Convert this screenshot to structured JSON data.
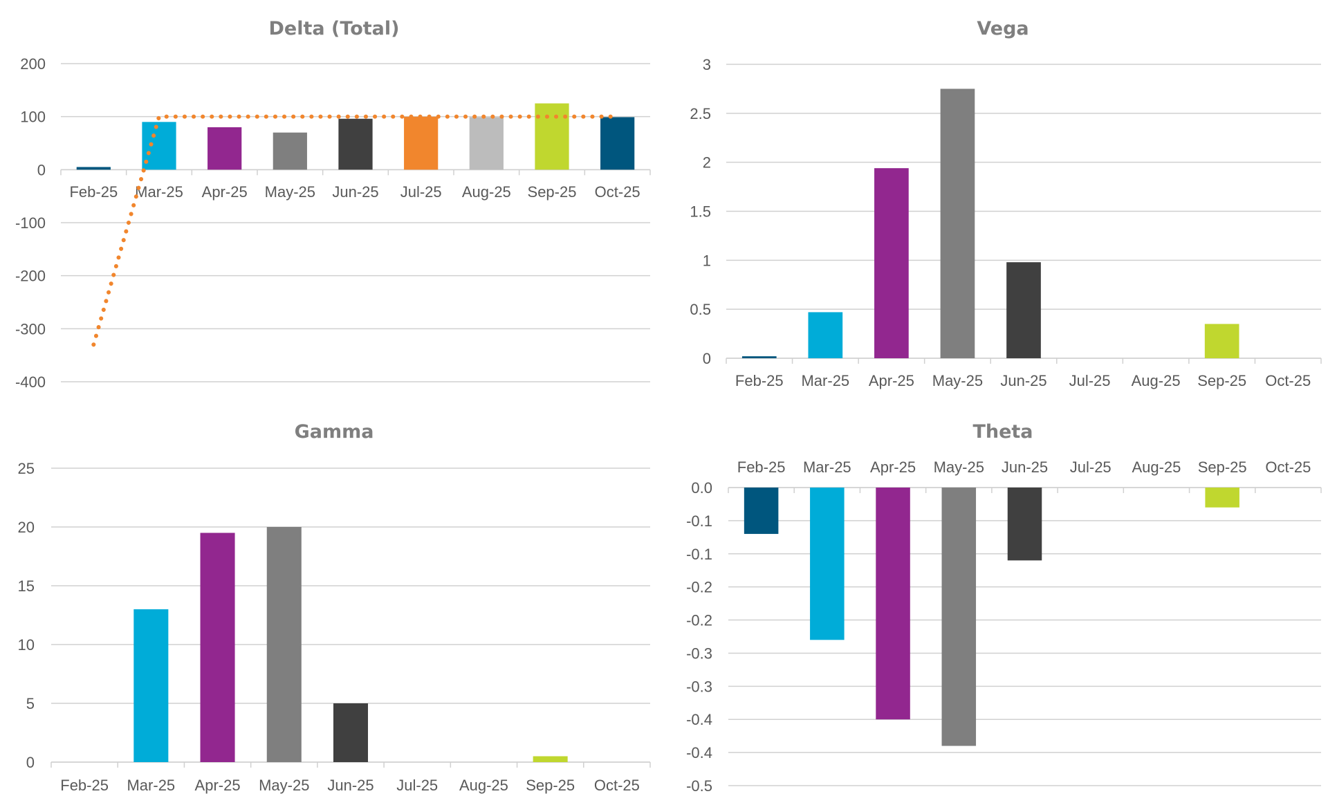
{
  "chart_data": [
    {
      "type": "bar",
      "title": "Delta (Total)",
      "categories": [
        "Feb-25",
        "Mar-25",
        "Apr-25",
        "May-25",
        "Jun-25",
        "Jul-25",
        "Aug-25",
        "Sep-25",
        "Oct-25"
      ],
      "values": [
        5,
        90,
        80,
        70,
        96,
        100,
        99,
        125,
        99
      ],
      "colors": [
        "#00567e",
        "#00acd8",
        "#92278f",
        "#7f7f7f",
        "#404040",
        "#f1862d",
        "#bcbcbc",
        "#c0d72f",
        "#00567e"
      ],
      "overlay_line": {
        "type": "line",
        "style": "dotted",
        "color": "#f1862d",
        "values": [
          -330,
          100,
          100,
          100,
          100,
          100,
          100,
          100,
          100
        ]
      },
      "ylim": [
        -400,
        200
      ],
      "yticks": [
        200,
        100,
        0,
        -100,
        -200,
        -300,
        -400
      ],
      "ytick_labels": [
        "200",
        "100",
        "0",
        "-100",
        "-200",
        "-300",
        "-400"
      ],
      "xlabel": "",
      "ylabel": "",
      "grid": true,
      "legend": "none"
    },
    {
      "type": "bar",
      "title": "Vega",
      "categories": [
        "Feb-25",
        "Mar-25",
        "Apr-25",
        "May-25",
        "Jun-25",
        "Jul-25",
        "Aug-25",
        "Sep-25",
        "Oct-25"
      ],
      "values": [
        0.02,
        0.47,
        1.94,
        2.75,
        0.98,
        0,
        0,
        0.35,
        0
      ],
      "colors": [
        "#00567e",
        "#00acd8",
        "#92278f",
        "#7f7f7f",
        "#404040",
        "#f1862d",
        "#bcbcbc",
        "#c0d72f",
        "#00567e"
      ],
      "ylim": [
        0,
        3
      ],
      "yticks": [
        3,
        2.5,
        2,
        1.5,
        1,
        0.5,
        0
      ],
      "ytick_labels": [
        "3",
        "2.5",
        "2",
        "1.5",
        "1",
        "0.5",
        "0"
      ],
      "xlabel": "",
      "ylabel": "",
      "grid": true,
      "legend": "none"
    },
    {
      "type": "bar",
      "title": "Gamma",
      "categories": [
        "Feb-25",
        "Mar-25",
        "Apr-25",
        "May-25",
        "Jun-25",
        "Jul-25",
        "Aug-25",
        "Sep-25",
        "Oct-25"
      ],
      "values": [
        0,
        13,
        19.5,
        20,
        5,
        0,
        0,
        0.5,
        0
      ],
      "colors": [
        "#00567e",
        "#00acd8",
        "#92278f",
        "#7f7f7f",
        "#404040",
        "#f1862d",
        "#bcbcbc",
        "#c0d72f",
        "#00567e"
      ],
      "ylim": [
        0,
        25
      ],
      "yticks": [
        25,
        20,
        15,
        10,
        5,
        0
      ],
      "ytick_labels": [
        "25",
        "20",
        "15",
        "10",
        "5",
        "0"
      ],
      "xlabel": "",
      "ylabel": "",
      "grid": true,
      "legend": "none"
    },
    {
      "type": "bar",
      "title": "Theta",
      "categories": [
        "Feb-25",
        "Mar-25",
        "Apr-25",
        "May-25",
        "Jun-25",
        "Jul-25",
        "Aug-25",
        "Sep-25",
        "Oct-25"
      ],
      "values": [
        -0.07,
        -0.23,
        -0.35,
        -0.39,
        -0.11,
        0,
        0,
        -0.03,
        0
      ],
      "colors": [
        "#00567e",
        "#00acd8",
        "#92278f",
        "#7f7f7f",
        "#404040",
        "#f1862d",
        "#bcbcbc",
        "#c0d72f",
        "#00567e"
      ],
      "ylim": [
        -0.45,
        0
      ],
      "yticks": [
        0,
        -0.05,
        -0.1,
        -0.15,
        -0.2,
        -0.25,
        -0.3,
        -0.35,
        -0.4,
        -0.45
      ],
      "ytick_labels": [
        "0.0",
        "-0.1",
        "-0.1",
        "-0.2",
        "-0.2",
        "-0.3",
        "-0.3",
        "-0.4",
        "-0.4",
        "-0.5"
      ],
      "xlabel": "",
      "ylabel": "",
      "grid": true,
      "legend": "none",
      "xaxis_position": "top"
    }
  ]
}
